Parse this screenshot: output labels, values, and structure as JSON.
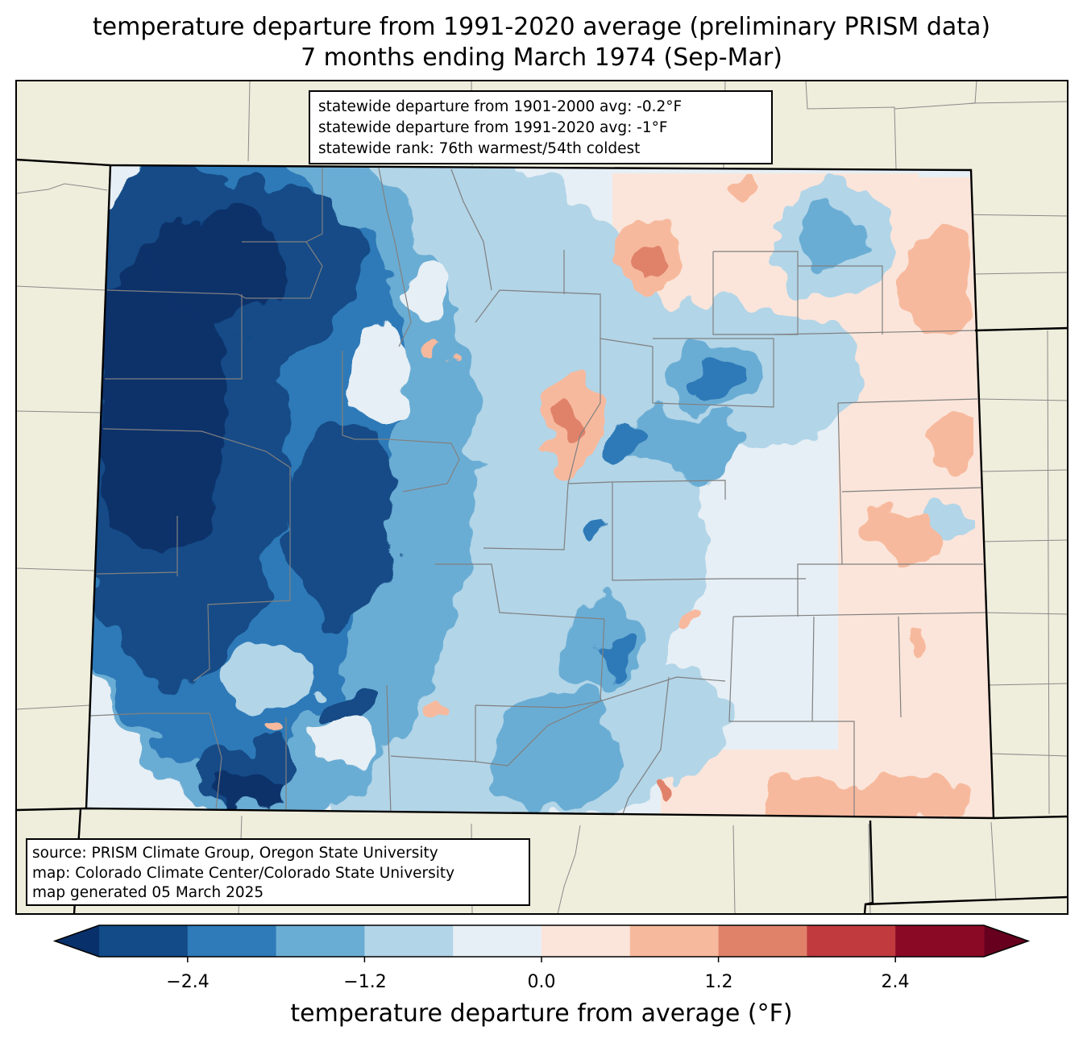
{
  "title": {
    "line1": "temperature departure from 1991-2020 average (preliminary PRISM data)",
    "line2": "7 months ending March 1974 (Sep-Mar)"
  },
  "stats": {
    "line1": "statewide departure from 1901-2000 avg: -0.2°F",
    "line2": "statewide departure from 1991-2020 avg: -1°F",
    "line3": "statewide rank: 76th warmest/54th coldest"
  },
  "source": {
    "line1": "source: PRISM Climate Group, Oregon State University",
    "line2": "map: Colorado Climate Center/Colorado State University",
    "line3": "map generated 05 March 2025"
  },
  "colorbar": {
    "label": "temperature departure from average (°F)",
    "ticks": [
      "−2.4",
      "−1.2",
      "0.0",
      "1.2",
      "2.4"
    ],
    "levels": [
      -3.0,
      -2.4,
      -1.8,
      -1.2,
      -0.6,
      0.0,
      0.6,
      1.2,
      1.8,
      2.4,
      3.0
    ],
    "extend": "both"
  },
  "colors": {
    "under": "#08306b",
    "over": "#67001f",
    "bins": [
      "#124b87",
      "#2f7ab8",
      "#6aadd4",
      "#b2d5e8",
      "#e6eff5",
      "#fbe5da",
      "#f7b99d",
      "#e0826a",
      "#c03a3e",
      "#8a0a26"
    ],
    "land": "#efeddc",
    "state_border": "#000000",
    "county_border": "#808080"
  }
}
